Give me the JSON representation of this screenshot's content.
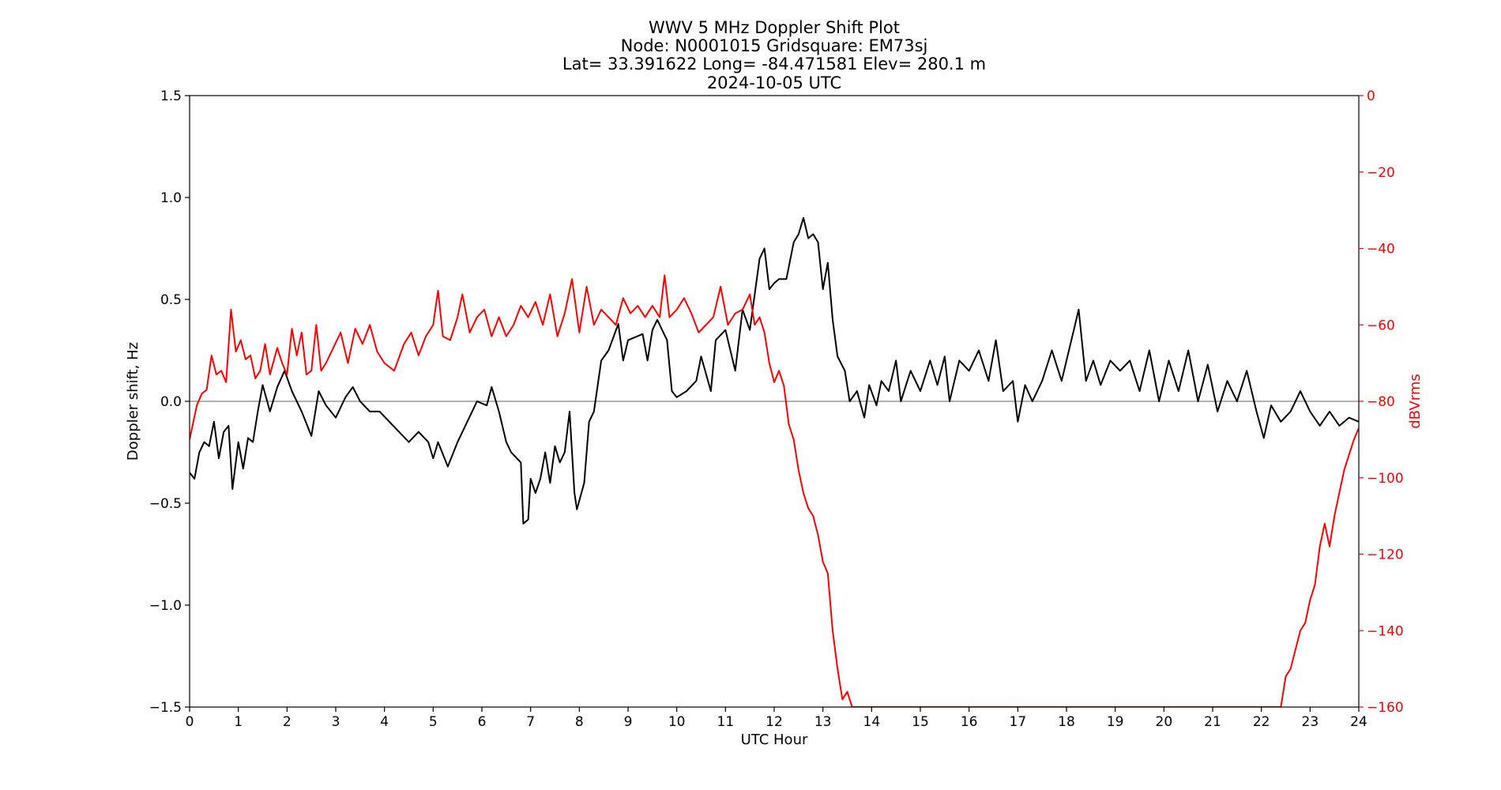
{
  "chart_data": {
    "type": "line",
    "title_lines": [
      "WWV 5 MHz Doppler Shift Plot",
      "Node:  N0001015     Gridsquare:  EM73sj",
      "Lat= 33.391622    Long= -84.471581    Elev= 280.1 m",
      "2024-10-05  UTC"
    ],
    "xlabel": "UTC Hour",
    "ylabel": "Doppler shift, Hz",
    "y2label": "dBVrms",
    "xlim": [
      0,
      24
    ],
    "ylim": [
      -1.5,
      1.5
    ],
    "y2lim": [
      -160,
      0
    ],
    "x_ticks": [
      "0",
      "1",
      "2",
      "3",
      "4",
      "5",
      "6",
      "7",
      "8",
      "9",
      "10",
      "11",
      "12",
      "13",
      "14",
      "15",
      "16",
      "17",
      "18",
      "19",
      "20",
      "21",
      "22",
      "23",
      "24"
    ],
    "y_ticks": [
      "1.5",
      "1.0",
      "0.5",
      "0.0",
      "−0.5",
      "−1.0",
      "−1.5"
    ],
    "y2_ticks": [
      "0",
      "−20",
      "−40",
      "−60",
      "−80",
      "−100",
      "−120",
      "−140",
      "−160"
    ],
    "grid": false,
    "zero_line_color": "#999999",
    "series": [
      {
        "axis": "left",
        "color": "#000000",
        "points": [
          [
            0.0,
            -0.35
          ],
          [
            0.1,
            -0.38
          ],
          [
            0.2,
            -0.25
          ],
          [
            0.3,
            -0.2
          ],
          [
            0.4,
            -0.22
          ],
          [
            0.5,
            -0.1
          ],
          [
            0.6,
            -0.28
          ],
          [
            0.7,
            -0.15
          ],
          [
            0.8,
            -0.12
          ],
          [
            0.88,
            -0.43
          ],
          [
            1.0,
            -0.2
          ],
          [
            1.1,
            -0.33
          ],
          [
            1.2,
            -0.18
          ],
          [
            1.3,
            -0.2
          ],
          [
            1.4,
            -0.05
          ],
          [
            1.5,
            0.08
          ],
          [
            1.65,
            -0.05
          ],
          [
            1.8,
            0.07
          ],
          [
            1.95,
            0.15
          ],
          [
            2.1,
            0.05
          ],
          [
            2.3,
            -0.05
          ],
          [
            2.5,
            -0.17
          ],
          [
            2.65,
            0.05
          ],
          [
            2.8,
            -0.02
          ],
          [
            3.0,
            -0.08
          ],
          [
            3.2,
            0.02
          ],
          [
            3.35,
            0.07
          ],
          [
            3.5,
            0.0
          ],
          [
            3.7,
            -0.05
          ],
          [
            3.9,
            -0.05
          ],
          [
            4.1,
            -0.1
          ],
          [
            4.3,
            -0.15
          ],
          [
            4.5,
            -0.2
          ],
          [
            4.7,
            -0.15
          ],
          [
            4.9,
            -0.2
          ],
          [
            5.0,
            -0.28
          ],
          [
            5.1,
            -0.2
          ],
          [
            5.3,
            -0.32
          ],
          [
            5.5,
            -0.2
          ],
          [
            5.7,
            -0.1
          ],
          [
            5.9,
            0.0
          ],
          [
            6.1,
            -0.02
          ],
          [
            6.2,
            0.07
          ],
          [
            6.35,
            -0.05
          ],
          [
            6.5,
            -0.2
          ],
          [
            6.6,
            -0.25
          ],
          [
            6.8,
            -0.3
          ],
          [
            6.85,
            -0.6
          ],
          [
            6.95,
            -0.58
          ],
          [
            7.0,
            -0.38
          ],
          [
            7.1,
            -0.45
          ],
          [
            7.2,
            -0.38
          ],
          [
            7.3,
            -0.25
          ],
          [
            7.4,
            -0.4
          ],
          [
            7.5,
            -0.22
          ],
          [
            7.6,
            -0.3
          ],
          [
            7.7,
            -0.25
          ],
          [
            7.8,
            -0.05
          ],
          [
            7.9,
            -0.45
          ],
          [
            7.95,
            -0.53
          ],
          [
            8.1,
            -0.4
          ],
          [
            8.2,
            -0.1
          ],
          [
            8.3,
            -0.05
          ],
          [
            8.45,
            0.2
          ],
          [
            8.6,
            0.25
          ],
          [
            8.8,
            0.38
          ],
          [
            8.9,
            0.2
          ],
          [
            9.0,
            0.3
          ],
          [
            9.2,
            0.32
          ],
          [
            9.3,
            0.33
          ],
          [
            9.4,
            0.2
          ],
          [
            9.5,
            0.35
          ],
          [
            9.6,
            0.4
          ],
          [
            9.8,
            0.3
          ],
          [
            9.9,
            0.05
          ],
          [
            10.0,
            0.02
          ],
          [
            10.2,
            0.05
          ],
          [
            10.4,
            0.1
          ],
          [
            10.5,
            0.22
          ],
          [
            10.7,
            0.05
          ],
          [
            10.8,
            0.3
          ],
          [
            11.0,
            0.35
          ],
          [
            11.2,
            0.15
          ],
          [
            11.35,
            0.45
          ],
          [
            11.5,
            0.35
          ],
          [
            11.7,
            0.7
          ],
          [
            11.8,
            0.75
          ],
          [
            11.9,
            0.55
          ],
          [
            12.0,
            0.58
          ],
          [
            12.1,
            0.6
          ],
          [
            12.25,
            0.6
          ],
          [
            12.4,
            0.78
          ],
          [
            12.5,
            0.82
          ],
          [
            12.6,
            0.9
          ],
          [
            12.7,
            0.8
          ],
          [
            12.8,
            0.82
          ],
          [
            12.9,
            0.78
          ],
          [
            13.0,
            0.55
          ],
          [
            13.1,
            0.68
          ],
          [
            13.2,
            0.4
          ],
          [
            13.3,
            0.22
          ],
          [
            13.45,
            0.15
          ],
          [
            13.55,
            0.0
          ],
          [
            13.7,
            0.05
          ],
          [
            13.85,
            -0.08
          ],
          [
            13.95,
            0.08
          ],
          [
            14.1,
            -0.02
          ],
          [
            14.2,
            0.1
          ],
          [
            14.35,
            0.05
          ],
          [
            14.5,
            0.2
          ],
          [
            14.6,
            0.0
          ],
          [
            14.8,
            0.15
          ],
          [
            15.0,
            0.05
          ],
          [
            15.2,
            0.2
          ],
          [
            15.35,
            0.08
          ],
          [
            15.5,
            0.22
          ],
          [
            15.6,
            0.0
          ],
          [
            15.8,
            0.2
          ],
          [
            16.0,
            0.15
          ],
          [
            16.2,
            0.25
          ],
          [
            16.4,
            0.1
          ],
          [
            16.55,
            0.3
          ],
          [
            16.7,
            0.05
          ],
          [
            16.9,
            0.1
          ],
          [
            17.0,
            -0.1
          ],
          [
            17.15,
            0.08
          ],
          [
            17.3,
            0.0
          ],
          [
            17.5,
            0.1
          ],
          [
            17.7,
            0.25
          ],
          [
            17.9,
            0.1
          ],
          [
            18.1,
            0.3
          ],
          [
            18.25,
            0.45
          ],
          [
            18.4,
            0.1
          ],
          [
            18.55,
            0.2
          ],
          [
            18.7,
            0.08
          ],
          [
            18.9,
            0.2
          ],
          [
            19.1,
            0.15
          ],
          [
            19.3,
            0.2
          ],
          [
            19.5,
            0.05
          ],
          [
            19.7,
            0.25
          ],
          [
            19.9,
            0.0
          ],
          [
            20.1,
            0.2
          ],
          [
            20.3,
            0.05
          ],
          [
            20.5,
            0.25
          ],
          [
            20.7,
            0.0
          ],
          [
            20.9,
            0.18
          ],
          [
            21.1,
            -0.05
          ],
          [
            21.3,
            0.1
          ],
          [
            21.5,
            0.0
          ],
          [
            21.7,
            0.15
          ],
          [
            21.9,
            -0.05
          ],
          [
            22.05,
            -0.18
          ],
          [
            22.2,
            -0.02
          ],
          [
            22.4,
            -0.1
          ],
          [
            22.6,
            -0.05
          ],
          [
            22.8,
            0.05
          ],
          [
            23.0,
            -0.05
          ],
          [
            23.2,
            -0.12
          ],
          [
            23.4,
            -0.05
          ],
          [
            23.6,
            -0.12
          ],
          [
            23.8,
            -0.08
          ],
          [
            24.0,
            -0.1
          ]
        ]
      },
      {
        "axis": "right",
        "color": "#ff0000",
        "points": [
          [
            0.0,
            -90
          ],
          [
            0.05,
            -87
          ],
          [
            0.15,
            -81
          ],
          [
            0.25,
            -78
          ],
          [
            0.35,
            -77
          ],
          [
            0.45,
            -68
          ],
          [
            0.55,
            -73
          ],
          [
            0.65,
            -72
          ],
          [
            0.75,
            -75
          ],
          [
            0.85,
            -56
          ],
          [
            0.95,
            -67
          ],
          [
            1.05,
            -64
          ],
          [
            1.15,
            -69
          ],
          [
            1.25,
            -68
          ],
          [
            1.35,
            -74
          ],
          [
            1.45,
            -72
          ],
          [
            1.55,
            -65
          ],
          [
            1.65,
            -73
          ],
          [
            1.8,
            -66
          ],
          [
            1.9,
            -70
          ],
          [
            2.0,
            -73
          ],
          [
            2.1,
            -61
          ],
          [
            2.2,
            -68
          ],
          [
            2.3,
            -62
          ],
          [
            2.4,
            -73
          ],
          [
            2.5,
            -72
          ],
          [
            2.6,
            -60
          ],
          [
            2.7,
            -72
          ],
          [
            2.8,
            -70
          ],
          [
            2.95,
            -66
          ],
          [
            3.1,
            -62
          ],
          [
            3.25,
            -70
          ],
          [
            3.4,
            -61
          ],
          [
            3.55,
            -65
          ],
          [
            3.7,
            -60
          ],
          [
            3.85,
            -67
          ],
          [
            4.0,
            -70
          ],
          [
            4.2,
            -72
          ],
          [
            4.4,
            -65
          ],
          [
            4.55,
            -62
          ],
          [
            4.7,
            -68
          ],
          [
            4.85,
            -63
          ],
          [
            5.0,
            -60
          ],
          [
            5.1,
            -51
          ],
          [
            5.2,
            -63
          ],
          [
            5.35,
            -64
          ],
          [
            5.5,
            -58
          ],
          [
            5.6,
            -52
          ],
          [
            5.75,
            -62
          ],
          [
            5.9,
            -58
          ],
          [
            6.05,
            -56
          ],
          [
            6.2,
            -63
          ],
          [
            6.35,
            -58
          ],
          [
            6.5,
            -63
          ],
          [
            6.65,
            -60
          ],
          [
            6.8,
            -55
          ],
          [
            6.95,
            -58
          ],
          [
            7.1,
            -54
          ],
          [
            7.25,
            -60
          ],
          [
            7.4,
            -52
          ],
          [
            7.55,
            -63
          ],
          [
            7.7,
            -57
          ],
          [
            7.85,
            -48
          ],
          [
            8.0,
            -62
          ],
          [
            8.15,
            -50
          ],
          [
            8.3,
            -60
          ],
          [
            8.45,
            -56
          ],
          [
            8.6,
            -58
          ],
          [
            8.75,
            -60
          ],
          [
            8.9,
            -53
          ],
          [
            9.05,
            -57
          ],
          [
            9.2,
            -55
          ],
          [
            9.35,
            -58
          ],
          [
            9.5,
            -55
          ],
          [
            9.65,
            -58
          ],
          [
            9.75,
            -47
          ],
          [
            9.85,
            -58
          ],
          [
            10.0,
            -56
          ],
          [
            10.15,
            -53
          ],
          [
            10.3,
            -57
          ],
          [
            10.45,
            -62
          ],
          [
            10.6,
            -60
          ],
          [
            10.75,
            -58
          ],
          [
            10.9,
            -50
          ],
          [
            11.05,
            -60
          ],
          [
            11.2,
            -57
          ],
          [
            11.35,
            -56
          ],
          [
            11.5,
            -52
          ],
          [
            11.6,
            -60
          ],
          [
            11.7,
            -58
          ],
          [
            11.8,
            -62
          ],
          [
            11.9,
            -70
          ],
          [
            12.0,
            -75
          ],
          [
            12.1,
            -72
          ],
          [
            12.2,
            -76
          ],
          [
            12.3,
            -86
          ],
          [
            12.4,
            -90
          ],
          [
            12.5,
            -98
          ],
          [
            12.6,
            -104
          ],
          [
            12.7,
            -108
          ],
          [
            12.8,
            -110
          ],
          [
            12.9,
            -115
          ],
          [
            13.0,
            -122
          ],
          [
            13.1,
            -125
          ],
          [
            13.2,
            -140
          ],
          [
            13.3,
            -150
          ],
          [
            13.4,
            -158
          ],
          [
            13.5,
            -156
          ],
          [
            13.6,
            -160
          ],
          [
            22.4,
            -160
          ],
          [
            22.5,
            -152
          ],
          [
            22.6,
            -150
          ],
          [
            22.7,
            -145
          ],
          [
            22.8,
            -140
          ],
          [
            22.9,
            -138
          ],
          [
            23.0,
            -132
          ],
          [
            23.1,
            -128
          ],
          [
            23.2,
            -118
          ],
          [
            23.3,
            -112
          ],
          [
            23.4,
            -118
          ],
          [
            23.5,
            -110
          ],
          [
            23.6,
            -104
          ],
          [
            23.7,
            -98
          ],
          [
            23.8,
            -94
          ],
          [
            23.9,
            -90
          ],
          [
            24.0,
            -87
          ]
        ]
      }
    ]
  }
}
